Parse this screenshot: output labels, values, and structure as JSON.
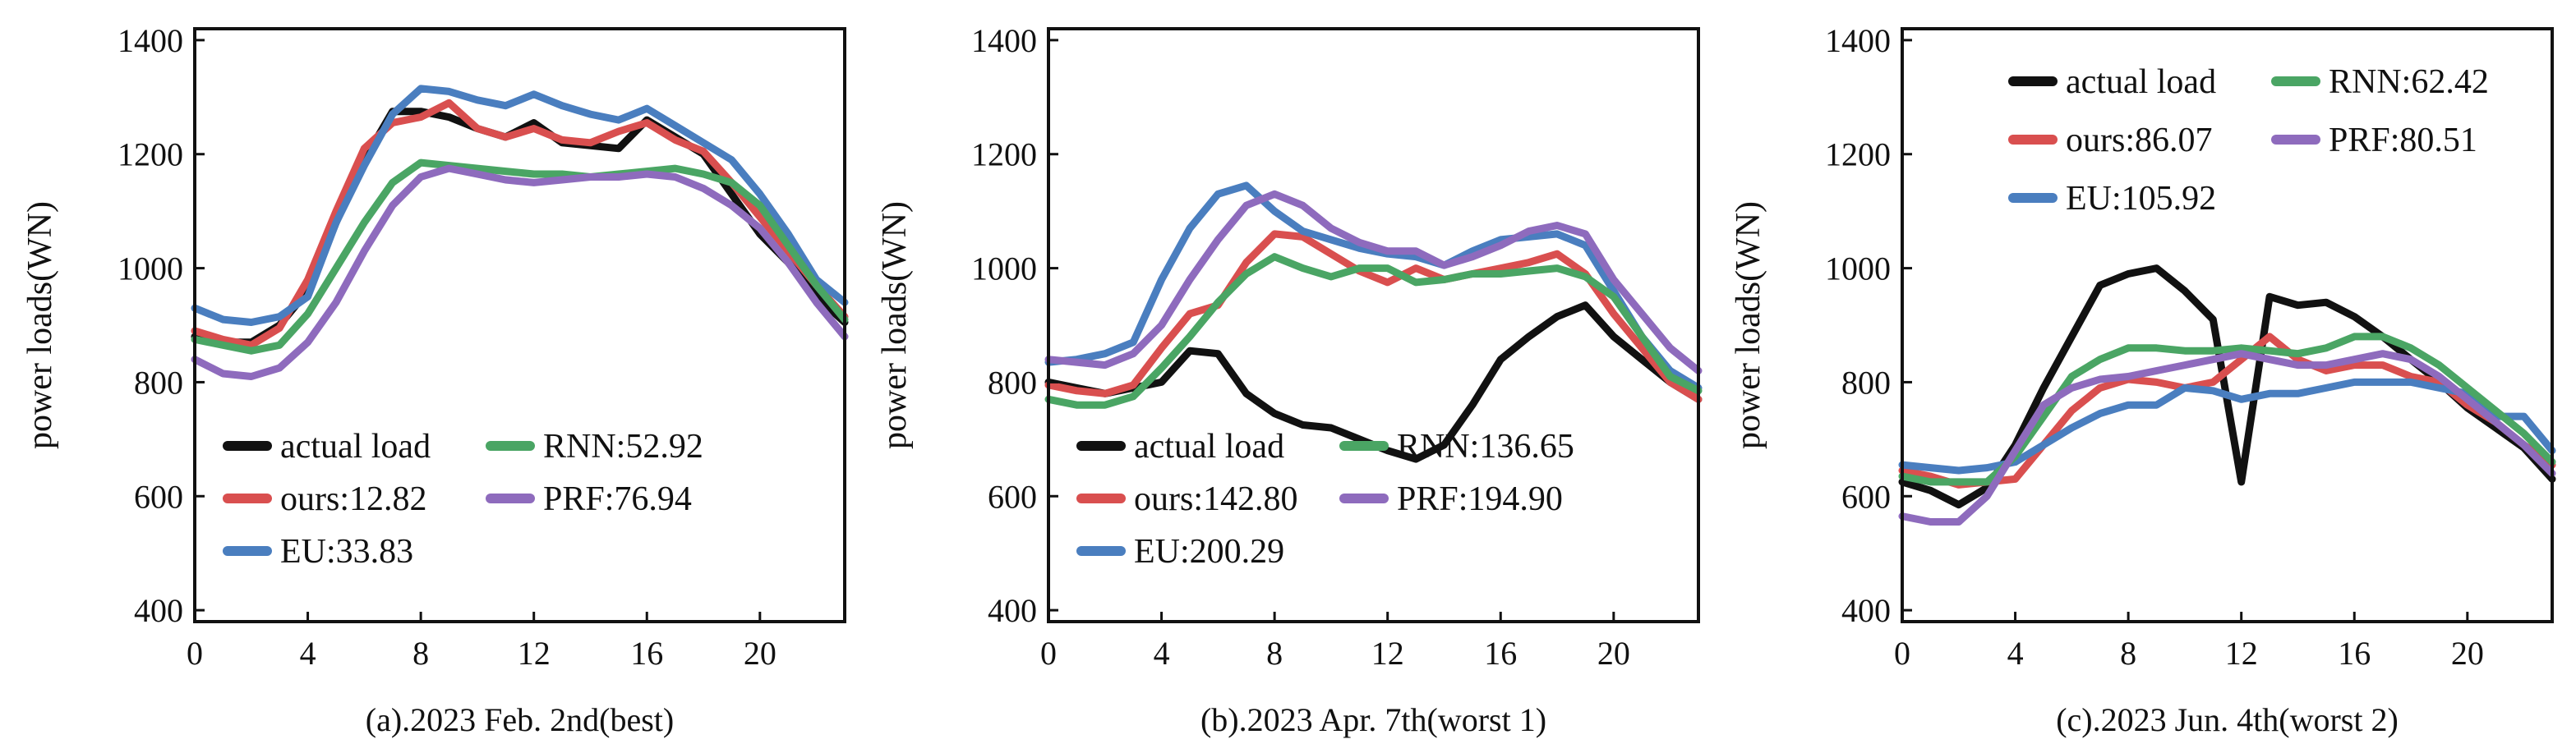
{
  "chart_data": [
    {
      "type": "line",
      "caption": "(a).2023 Feb. 2nd(best)",
      "ylabel": "power loads(WN)",
      "xlim": [
        0,
        23
      ],
      "ylim": [
        380,
        1420
      ],
      "xticks": [
        0,
        4,
        8,
        12,
        16,
        20
      ],
      "yticks": [
        400,
        600,
        800,
        1000,
        1200,
        1400
      ],
      "legend_position": "lower-left",
      "series": [
        {
          "name": "actual load",
          "label": "actual load",
          "color": "#111111",
          "values": [
            880,
            870,
            870,
            900,
            960,
            1080,
            1190,
            1275,
            1275,
            1265,
            1245,
            1230,
            1255,
            1220,
            1215,
            1210,
            1260,
            1230,
            1200,
            1130,
            1060,
            1010,
            950,
            905
          ]
        },
        {
          "name": "ours",
          "label": "ours:12.82",
          "color": "#d94f4f",
          "values": [
            890,
            875,
            865,
            895,
            980,
            1100,
            1210,
            1255,
            1265,
            1290,
            1245,
            1230,
            1245,
            1225,
            1220,
            1240,
            1255,
            1225,
            1205,
            1150,
            1090,
            1030,
            970,
            915
          ]
        },
        {
          "name": "EU",
          "label": "EU:33.83",
          "color": "#4a7ebf",
          "values": [
            930,
            910,
            905,
            915,
            950,
            1080,
            1180,
            1270,
            1315,
            1310,
            1295,
            1285,
            1305,
            1285,
            1270,
            1260,
            1280,
            1250,
            1220,
            1190,
            1130,
            1060,
            980,
            940
          ]
        },
        {
          "name": "RNN",
          "label": "RNN:52.92",
          "color": "#4aa564",
          "values": [
            875,
            865,
            855,
            865,
            920,
            1000,
            1080,
            1150,
            1185,
            1180,
            1175,
            1170,
            1165,
            1165,
            1160,
            1165,
            1170,
            1175,
            1165,
            1150,
            1110,
            1040,
            970,
            910
          ]
        },
        {
          "name": "PRF",
          "label": "PRF:76.94",
          "color": "#8e6bbd",
          "values": [
            840,
            815,
            810,
            825,
            870,
            940,
            1030,
            1110,
            1160,
            1175,
            1165,
            1155,
            1150,
            1155,
            1160,
            1160,
            1165,
            1160,
            1140,
            1110,
            1070,
            1010,
            940,
            880
          ]
        }
      ]
    },
    {
      "type": "line",
      "caption": "(b).2023 Apr. 7th(worst 1)",
      "ylabel": "power loads(WN)",
      "xlim": [
        0,
        23
      ],
      "ylim": [
        380,
        1420
      ],
      "xticks": [
        0,
        4,
        8,
        12,
        16,
        20
      ],
      "yticks": [
        400,
        600,
        800,
        1000,
        1200,
        1400
      ],
      "legend_position": "lower-left",
      "series": [
        {
          "name": "actual load",
          "label": "actual load",
          "color": "#111111",
          "values": [
            800,
            790,
            780,
            790,
            800,
            855,
            850,
            780,
            745,
            725,
            720,
            700,
            680,
            665,
            690,
            760,
            840,
            880,
            915,
            935,
            880,
            840,
            800,
            770
          ]
        },
        {
          "name": "ours",
          "label": "ours:142.80",
          "color": "#d94f4f",
          "values": [
            795,
            785,
            780,
            795,
            860,
            920,
            935,
            1010,
            1060,
            1055,
            1025,
            995,
            975,
            1000,
            980,
            990,
            1000,
            1010,
            1025,
            990,
            920,
            860,
            800,
            770
          ]
        },
        {
          "name": "EU",
          "label": "EU:200.29",
          "color": "#4a7ebf",
          "values": [
            835,
            840,
            850,
            870,
            980,
            1070,
            1130,
            1145,
            1100,
            1065,
            1050,
            1035,
            1025,
            1020,
            1005,
            1030,
            1050,
            1055,
            1060,
            1040,
            960,
            880,
            820,
            790
          ]
        },
        {
          "name": "RNN",
          "label": "RNN:136.65",
          "color": "#4aa564",
          "values": [
            770,
            760,
            760,
            775,
            825,
            880,
            940,
            990,
            1020,
            1000,
            985,
            1000,
            1000,
            975,
            980,
            990,
            990,
            995,
            1000,
            985,
            950,
            880,
            810,
            785
          ]
        },
        {
          "name": "PRF",
          "label": "PRF:194.90",
          "color": "#8e6bbd",
          "values": [
            840,
            835,
            830,
            850,
            900,
            980,
            1050,
            1110,
            1130,
            1110,
            1070,
            1045,
            1030,
            1030,
            1005,
            1020,
            1040,
            1065,
            1075,
            1060,
            980,
            920,
            860,
            820
          ]
        }
      ]
    },
    {
      "type": "line",
      "caption": "(c).2023 Jun. 4th(worst 2)",
      "ylabel": "power loads(WN)",
      "xlim": [
        0,
        23
      ],
      "ylim": [
        380,
        1420
      ],
      "xticks": [
        0,
        4,
        8,
        12,
        16,
        20
      ],
      "yticks": [
        400,
        600,
        800,
        1000,
        1200,
        1400
      ],
      "legend_position": "top-left",
      "series": [
        {
          "name": "actual load",
          "label": "actual load",
          "color": "#111111",
          "values": [
            625,
            610,
            585,
            615,
            690,
            790,
            880,
            970,
            990,
            1000,
            960,
            910,
            625,
            950,
            935,
            940,
            915,
            880,
            840,
            800,
            755,
            720,
            685,
            630
          ]
        },
        {
          "name": "ours",
          "label": "ours:86.07",
          "color": "#d94f4f",
          "values": [
            645,
            635,
            620,
            625,
            630,
            690,
            750,
            790,
            805,
            800,
            790,
            800,
            840,
            880,
            840,
            820,
            830,
            830,
            810,
            800,
            760,
            730,
            690,
            655
          ]
        },
        {
          "name": "EU",
          "label": "EU:105.92",
          "color": "#4a7ebf",
          "values": [
            655,
            650,
            645,
            650,
            660,
            690,
            720,
            745,
            760,
            760,
            790,
            785,
            770,
            780,
            780,
            790,
            800,
            800,
            800,
            790,
            780,
            740,
            740,
            680
          ]
        },
        {
          "name": "RNN",
          "label": "RNN:62.42",
          "color": "#4aa564",
          "values": [
            635,
            625,
            625,
            625,
            670,
            740,
            810,
            840,
            860,
            860,
            855,
            855,
            860,
            855,
            850,
            860,
            880,
            880,
            860,
            830,
            790,
            750,
            710,
            660
          ]
        },
        {
          "name": "PRF",
          "label": "PRF:80.51",
          "color": "#8e6bbd",
          "values": [
            565,
            555,
            555,
            600,
            680,
            760,
            790,
            805,
            810,
            820,
            830,
            840,
            850,
            840,
            830,
            830,
            840,
            850,
            840,
            810,
            770,
            730,
            690,
            640
          ]
        }
      ]
    }
  ]
}
